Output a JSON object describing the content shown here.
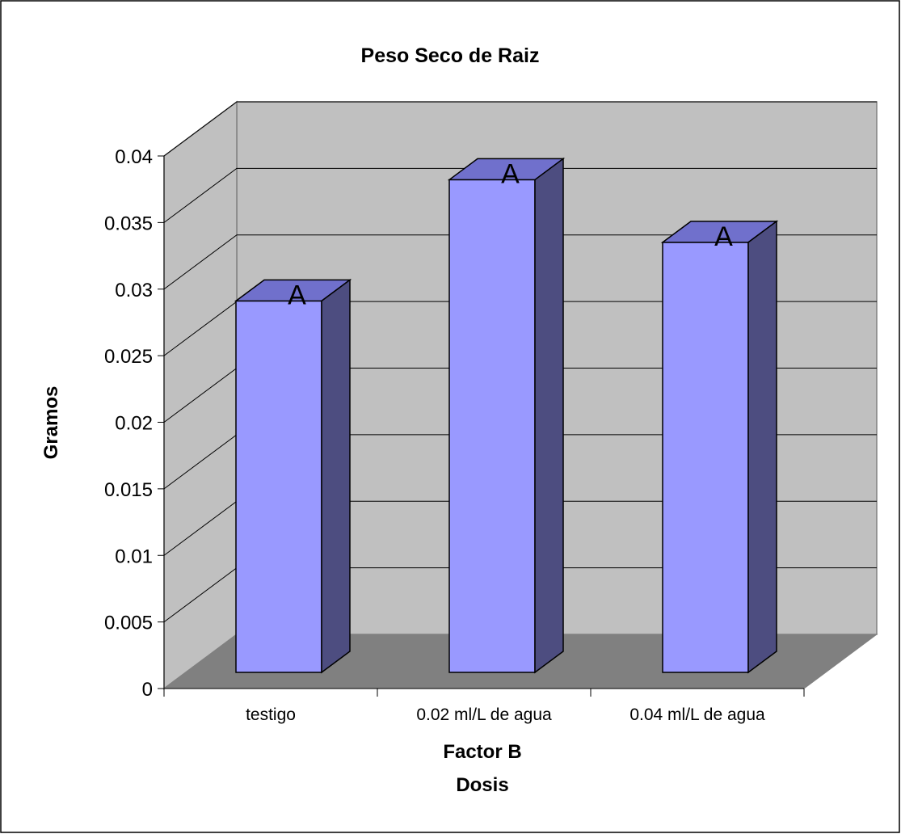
{
  "chart_data": {
    "type": "bar",
    "title": "Peso Seco de Raiz",
    "xlabel": "Factor B",
    "xlabel_line2": "Dosis",
    "ylabel": "Gramos",
    "categories": [
      "testigo",
      "0.02 ml/L de agua",
      "0.04 ml/L de agua"
    ],
    "values": [
      0.0279,
      0.037,
      0.0323
    ],
    "data_labels": [
      "A",
      "A",
      "A"
    ],
    "ylim": [
      0,
      0.04
    ],
    "yticks": [
      "0",
      "0.005",
      "0.01",
      "0.015",
      "0.02",
      "0.025",
      "0.03",
      "0.035",
      "0.04"
    ],
    "grid": true,
    "style": "3d-column",
    "colors": {
      "bar_front": "#9999ff",
      "bar_top": "#7070cc",
      "bar_side": "#4d4d80",
      "back_wall": "#c0c0c0",
      "floor": "#808080",
      "border": "#000000"
    }
  }
}
